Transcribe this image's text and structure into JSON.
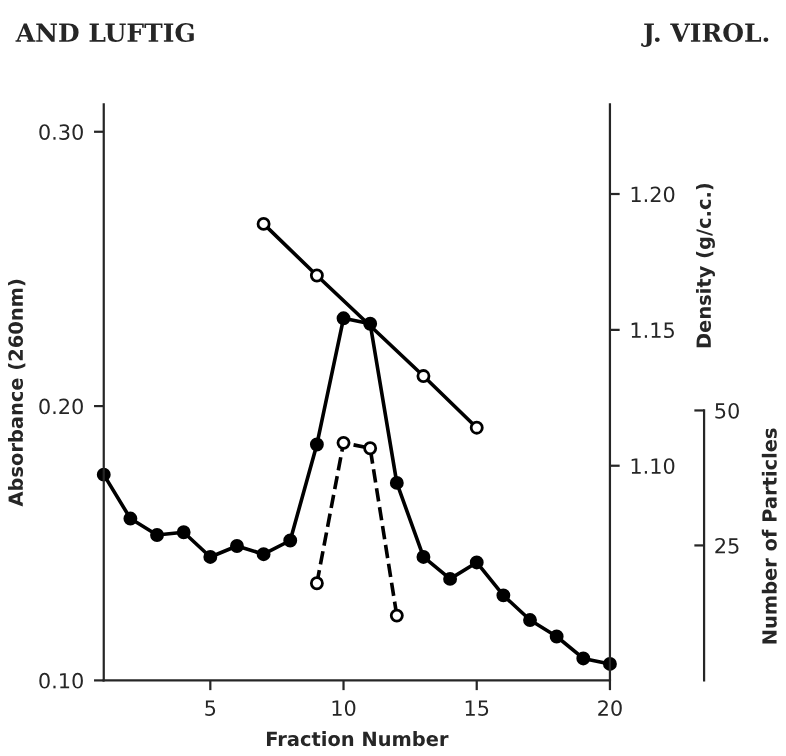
{
  "chart_data": {
    "type": "line",
    "xlabel": "Fraction Number",
    "ylabel": "Absorbance (260nm)",
    "y2label": "Density (g/c.c.)",
    "y3label": "Number of Particles",
    "annotations": [
      "AND LUFTIG",
      "J. VIROL."
    ],
    "xlim": [
      1,
      20
    ],
    "xticks": [
      5,
      10,
      15,
      20
    ],
    "ylim": [
      0.1,
      0.31
    ],
    "yticks": [
      {
        "value": 0.1,
        "label": "0.10"
      },
      {
        "value": 0.2,
        "label": "0.20"
      },
      {
        "value": 0.3,
        "label": "0.30"
      }
    ],
    "y2lim": [
      1.021,
      1.233
    ],
    "y2ticks": [
      {
        "value": 1.1,
        "label": "1.10"
      },
      1.15,
      {
        "value": 1.2,
        "label": "1.20"
      }
    ],
    "y3lim": [
      0,
      106.7
    ],
    "y3ticks": [
      25,
      50
    ],
    "grid": false,
    "legend": false,
    "series": [
      {
        "color": "#000000",
        "marker": "circle",
        "line_style": "solid",
        "x": [
          1,
          2,
          3,
          4,
          5,
          6,
          7,
          8,
          9,
          10,
          11,
          12,
          13,
          14,
          15,
          16,
          17,
          18,
          19,
          20
        ],
        "values": [
          0.175,
          0.159,
          0.153,
          0.154,
          0.145,
          0.149,
          0.146,
          0.151,
          0.186,
          0.232,
          0.23,
          0.172,
          0.145,
          0.137,
          0.143,
          0.131,
          0.122,
          0.116,
          0.108,
          0.106
        ]
      },
      {
        "color": "#000000",
        "marker": "circle",
        "line_style": "solid",
        "axis": "y2",
        "x": [
          7,
          9,
          13,
          15
        ],
        "values": [
          1.189,
          1.17,
          1.133,
          1.114
        ]
      },
      {
        "color": "#000000",
        "marker": "circle",
        "line_style": "dashed",
        "axis": "y3",
        "x": [
          9,
          10,
          11,
          12
        ],
        "values": [
          18,
          44,
          43,
          12
        ]
      }
    ]
  }
}
